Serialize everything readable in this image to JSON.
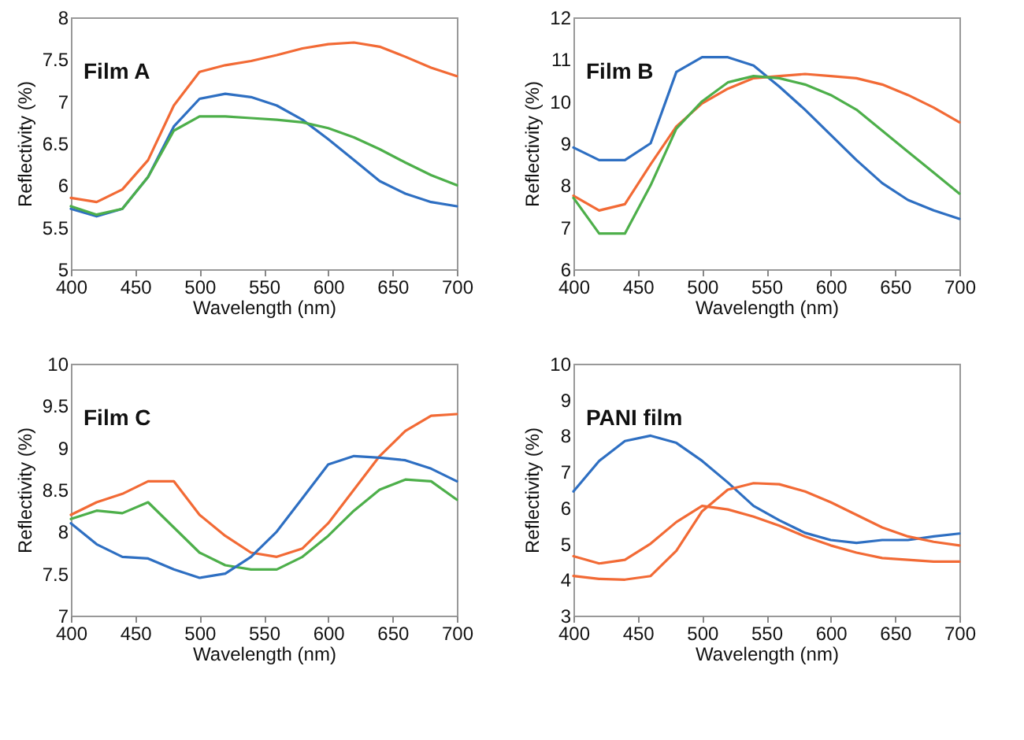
{
  "chart_data": [
    {
      "type": "line",
      "title": "Film A",
      "xlabel": "Wavelength (nm)",
      "ylabel": "Reflectivity (%)",
      "x": [
        400,
        420,
        440,
        460,
        480,
        500,
        520,
        540,
        560,
        580,
        600,
        620,
        640,
        660,
        680,
        700
      ],
      "xlim": [
        400,
        700
      ],
      "xticks": [
        400,
        450,
        500,
        550,
        600,
        650,
        700
      ],
      "ylim": [
        5,
        8
      ],
      "yticks": [
        5,
        5.5,
        6,
        6.5,
        7,
        7.5,
        8
      ],
      "grid": false,
      "series": [
        {
          "color": "#f26a35",
          "values": [
            5.85,
            5.8,
            5.95,
            6.3,
            6.95,
            7.35,
            7.43,
            7.48,
            7.55,
            7.63,
            7.68,
            7.7,
            7.65,
            7.53,
            7.4,
            7.3
          ]
        },
        {
          "color": "#2e6fc2",
          "values": [
            5.72,
            5.63,
            5.72,
            6.1,
            6.7,
            7.03,
            7.09,
            7.05,
            6.95,
            6.78,
            6.55,
            6.3,
            6.05,
            5.9,
            5.8,
            5.75
          ]
        },
        {
          "color": "#4daf4a",
          "values": [
            5.75,
            5.65,
            5.72,
            6.1,
            6.65,
            6.82,
            6.82,
            6.8,
            6.78,
            6.75,
            6.68,
            6.57,
            6.43,
            6.27,
            6.12,
            6.0
          ]
        }
      ]
    },
    {
      "type": "line",
      "title": "Film B",
      "xlabel": "Wavelength (nm)",
      "ylabel": "Reflectivity (%)",
      "x": [
        400,
        420,
        440,
        460,
        480,
        500,
        520,
        540,
        560,
        580,
        600,
        620,
        640,
        660,
        680,
        700
      ],
      "xlim": [
        400,
        700
      ],
      "xticks": [
        400,
        450,
        500,
        550,
        600,
        650,
        700
      ],
      "ylim": [
        6,
        12
      ],
      "yticks": [
        6,
        7,
        8,
        9,
        10,
        11,
        12
      ],
      "grid": false,
      "series": [
        {
          "color": "#2e6fc2",
          "values": [
            8.9,
            8.6,
            8.6,
            9.0,
            10.7,
            11.05,
            11.05,
            10.85,
            10.35,
            9.8,
            9.2,
            8.6,
            8.05,
            7.65,
            7.4,
            7.2
          ]
        },
        {
          "color": "#f26a35",
          "values": [
            7.75,
            7.4,
            7.55,
            8.5,
            9.4,
            9.95,
            10.3,
            10.55,
            10.6,
            10.65,
            10.6,
            10.55,
            10.4,
            10.15,
            9.85,
            9.5
          ]
        },
        {
          "color": "#4daf4a",
          "values": [
            7.7,
            6.85,
            6.85,
            8.0,
            9.35,
            10.0,
            10.45,
            10.6,
            10.55,
            10.4,
            10.15,
            9.8,
            9.3,
            8.8,
            8.3,
            7.8
          ]
        }
      ]
    },
    {
      "type": "line",
      "title": "Film C",
      "xlabel": "Wavelength (nm)",
      "ylabel": "Reflectivity (%)",
      "x": [
        400,
        420,
        440,
        460,
        480,
        500,
        520,
        540,
        560,
        580,
        600,
        620,
        640,
        660,
        680,
        700
      ],
      "xlim": [
        400,
        700
      ],
      "xticks": [
        400,
        450,
        500,
        550,
        600,
        650,
        700
      ],
      "ylim": [
        7,
        10
      ],
      "yticks": [
        7,
        7.5,
        8,
        8.5,
        9,
        9.5,
        10
      ],
      "grid": false,
      "series": [
        {
          "color": "#f26a35",
          "values": [
            8.2,
            8.35,
            8.45,
            8.6,
            8.6,
            8.2,
            7.95,
            7.75,
            7.7,
            7.8,
            8.1,
            8.5,
            8.9,
            9.2,
            9.38,
            9.4
          ]
        },
        {
          "color": "#4daf4a",
          "values": [
            8.15,
            8.25,
            8.22,
            8.35,
            8.05,
            7.75,
            7.6,
            7.55,
            7.55,
            7.7,
            7.95,
            8.25,
            8.5,
            8.62,
            8.6,
            8.38
          ]
        },
        {
          "color": "#2e6fc2",
          "values": [
            8.1,
            7.85,
            7.7,
            7.68,
            7.55,
            7.45,
            7.5,
            7.7,
            8.0,
            8.4,
            8.8,
            8.9,
            8.88,
            8.85,
            8.75,
            8.6
          ]
        }
      ]
    },
    {
      "type": "line",
      "title": "PANI film",
      "xlabel": "Wavelength (nm)",
      "ylabel": "Reflectivity (%)",
      "x": [
        400,
        420,
        440,
        460,
        480,
        500,
        520,
        540,
        560,
        580,
        600,
        620,
        640,
        660,
        680,
        700
      ],
      "xlim": [
        400,
        700
      ],
      "xticks": [
        400,
        450,
        500,
        550,
        600,
        650,
        700
      ],
      "ylim": [
        3,
        10
      ],
      "yticks": [
        3,
        4,
        5,
        6,
        7,
        8,
        9,
        10
      ],
      "grid": false,
      "series": [
        {
          "color": "#2e6fc2",
          "values": [
            6.45,
            7.3,
            7.85,
            8.0,
            7.8,
            7.3,
            6.7,
            6.05,
            5.65,
            5.3,
            5.1,
            5.02,
            5.1,
            5.1,
            5.2,
            5.28
          ]
        },
        {
          "color": "#f26a35",
          "values": [
            4.1,
            4.02,
            4.0,
            4.1,
            4.8,
            5.9,
            6.5,
            6.68,
            6.65,
            6.45,
            6.15,
            5.8,
            5.45,
            5.2,
            5.05,
            4.95
          ]
        },
        {
          "color": "#f26a35",
          "values": [
            4.65,
            4.45,
            4.55,
            5.0,
            5.6,
            6.05,
            5.95,
            5.75,
            5.5,
            5.2,
            4.95,
            4.75,
            4.6,
            4.55,
            4.5,
            4.5
          ]
        }
      ]
    }
  ]
}
